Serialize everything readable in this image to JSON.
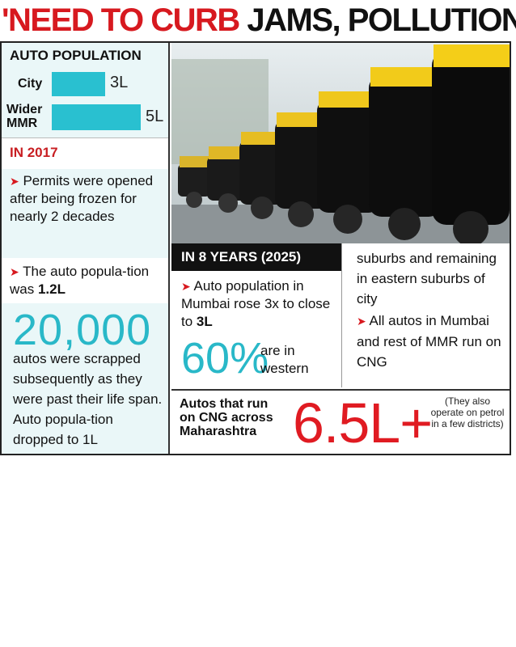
{
  "headline": {
    "red": "'NEED TO CURB",
    "black": " JAMS, POLLUTION'"
  },
  "auto_population": {
    "title": "AUTO POPULATION",
    "rows": [
      {
        "label": "City",
        "value": "3L",
        "amount": 3
      },
      {
        "label": "Wider MMR",
        "value": "5L",
        "amount": 5
      }
    ],
    "bar_color": "#29c0d0"
  },
  "y2017": {
    "year": "IN 2017",
    "bullet1": "Permits were opened after being frozen for nearly 2 decades",
    "bullet2_pre": "The auto popula-tion was ",
    "bullet2_bold": "1.2L",
    "scrapped_num": "20,000",
    "scrapped_text": "autos were scrapped subsequently as they were past their life span. Auto popula-tion dropped to 1L"
  },
  "eight_years": {
    "header": "IN 8 YEARS (2025)",
    "text_pre": "Auto population in Mumbai rose 3x to close to ",
    "text_bold": "3L",
    "pct": "60%",
    "pct_text": "are in western"
  },
  "right": {
    "text1": "suburbs and remaining in eastern suburbs of city",
    "text2": "All autos in Mumbai and rest of MMR run on CNG"
  },
  "cng": {
    "label": "Autos that run on CNG across Maharashtra",
    "number": "6.5L+",
    "note": "(They also operate on petrol in a few districts)"
  },
  "colors": {
    "accent_red": "#d7191f",
    "accent_teal": "#29b8c8"
  }
}
